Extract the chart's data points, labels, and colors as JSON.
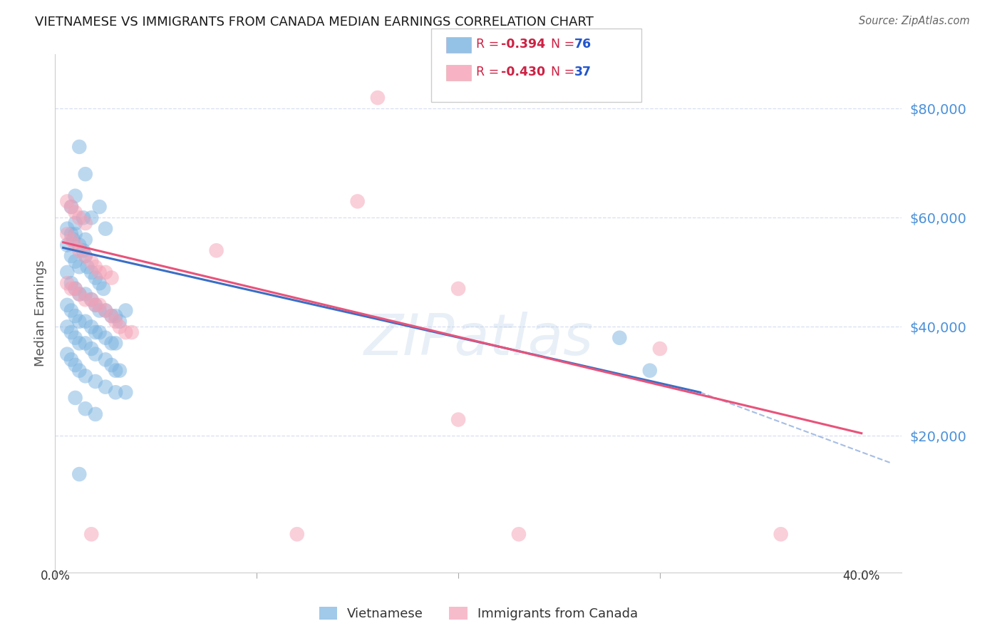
{
  "title": "VIETNAMESE VS IMMIGRANTS FROM CANADA MEDIAN EARNINGS CORRELATION CHART",
  "source": "Source: ZipAtlas.com",
  "ylabel": "Median Earnings",
  "xlim": [
    0.0,
    0.42
  ],
  "ylim": [
    -5000,
    90000
  ],
  "plot_xlim": [
    0.0,
    0.4
  ],
  "yticks": [
    20000,
    40000,
    60000,
    80000
  ],
  "ytick_labels": [
    "$20,000",
    "$40,000",
    "$60,000",
    "$80,000"
  ],
  "legend_label_viet": "Vietnamese",
  "legend_label_canada": "Immigrants from Canada",
  "watermark": "ZIPatlas",
  "blue_color": "#7ab3e0",
  "pink_color": "#f5a0b5",
  "blue_line_color": "#3a6fc4",
  "pink_line_color": "#e8537a",
  "blue_scatter": [
    [
      0.008,
      57000
    ],
    [
      0.012,
      73000
    ],
    [
      0.015,
      68000
    ],
    [
      0.018,
      60000
    ],
    [
      0.022,
      62000
    ],
    [
      0.025,
      58000
    ],
    [
      0.01,
      64000
    ],
    [
      0.014,
      60000
    ],
    [
      0.006,
      55000
    ],
    [
      0.009,
      56000
    ],
    [
      0.01,
      57000
    ],
    [
      0.012,
      55000
    ],
    [
      0.014,
      54000
    ],
    [
      0.008,
      53000
    ],
    [
      0.01,
      52000
    ],
    [
      0.012,
      51000
    ],
    [
      0.015,
      53000
    ],
    [
      0.016,
      51000
    ],
    [
      0.018,
      50000
    ],
    [
      0.02,
      49000
    ],
    [
      0.022,
      48000
    ],
    [
      0.024,
      47000
    ],
    [
      0.006,
      50000
    ],
    [
      0.008,
      48000
    ],
    [
      0.01,
      47000
    ],
    [
      0.012,
      46000
    ],
    [
      0.015,
      46000
    ],
    [
      0.018,
      45000
    ],
    [
      0.02,
      44000
    ],
    [
      0.022,
      43000
    ],
    [
      0.025,
      43000
    ],
    [
      0.028,
      42000
    ],
    [
      0.03,
      42000
    ],
    [
      0.032,
      41000
    ],
    [
      0.035,
      43000
    ],
    [
      0.006,
      44000
    ],
    [
      0.008,
      43000
    ],
    [
      0.01,
      42000
    ],
    [
      0.012,
      41000
    ],
    [
      0.015,
      41000
    ],
    [
      0.018,
      40000
    ],
    [
      0.02,
      39000
    ],
    [
      0.022,
      39000
    ],
    [
      0.025,
      38000
    ],
    [
      0.028,
      37000
    ],
    [
      0.03,
      37000
    ],
    [
      0.006,
      40000
    ],
    [
      0.008,
      39000
    ],
    [
      0.01,
      38000
    ],
    [
      0.012,
      37000
    ],
    [
      0.015,
      37000
    ],
    [
      0.018,
      36000
    ],
    [
      0.02,
      35000
    ],
    [
      0.025,
      34000
    ],
    [
      0.028,
      33000
    ],
    [
      0.03,
      32000
    ],
    [
      0.032,
      32000
    ],
    [
      0.006,
      35000
    ],
    [
      0.008,
      34000
    ],
    [
      0.01,
      33000
    ],
    [
      0.012,
      32000
    ],
    [
      0.015,
      31000
    ],
    [
      0.02,
      30000
    ],
    [
      0.025,
      29000
    ],
    [
      0.03,
      28000
    ],
    [
      0.035,
      28000
    ],
    [
      0.28,
      38000
    ],
    [
      0.295,
      32000
    ],
    [
      0.01,
      27000
    ],
    [
      0.015,
      25000
    ],
    [
      0.02,
      24000
    ],
    [
      0.012,
      13000
    ],
    [
      0.006,
      58000
    ],
    [
      0.008,
      62000
    ],
    [
      0.01,
      59000
    ],
    [
      0.015,
      56000
    ]
  ],
  "pink_scatter": [
    [
      0.006,
      63000
    ],
    [
      0.008,
      62000
    ],
    [
      0.01,
      61000
    ],
    [
      0.012,
      60000
    ],
    [
      0.015,
      59000
    ],
    [
      0.006,
      57000
    ],
    [
      0.008,
      56000
    ],
    [
      0.01,
      55000
    ],
    [
      0.012,
      54000
    ],
    [
      0.015,
      53000
    ],
    [
      0.018,
      52000
    ],
    [
      0.02,
      51000
    ],
    [
      0.022,
      50000
    ],
    [
      0.025,
      50000
    ],
    [
      0.028,
      49000
    ],
    [
      0.006,
      48000
    ],
    [
      0.008,
      47000
    ],
    [
      0.01,
      47000
    ],
    [
      0.012,
      46000
    ],
    [
      0.015,
      45000
    ],
    [
      0.018,
      45000
    ],
    [
      0.02,
      44000
    ],
    [
      0.022,
      44000
    ],
    [
      0.025,
      43000
    ],
    [
      0.028,
      42000
    ],
    [
      0.03,
      41000
    ],
    [
      0.15,
      63000
    ],
    [
      0.032,
      40000
    ],
    [
      0.035,
      39000
    ],
    [
      0.038,
      39000
    ],
    [
      0.2,
      47000
    ],
    [
      0.3,
      36000
    ],
    [
      0.2,
      23000
    ],
    [
      0.16,
      82000
    ],
    [
      0.08,
      54000
    ],
    [
      0.018,
      2000
    ],
    [
      0.12,
      2000
    ],
    [
      0.23,
      2000
    ],
    [
      0.36,
      2000
    ]
  ],
  "blue_line": [
    [
      0.004,
      54500
    ],
    [
      0.32,
      28000
    ]
  ],
  "pink_line": [
    [
      0.004,
      55500
    ],
    [
      0.4,
      20500
    ]
  ],
  "blue_dash_line": [
    [
      0.32,
      28000
    ],
    [
      0.415,
      15000
    ]
  ],
  "background_color": "#ffffff",
  "grid_color": "#d8dff0",
  "title_color": "#1a1a1a",
  "axis_color": "#4a90d9",
  "ylabel_color": "#555555",
  "legend_r_color": "#cc2244",
  "legend_n_color": "#2255cc"
}
